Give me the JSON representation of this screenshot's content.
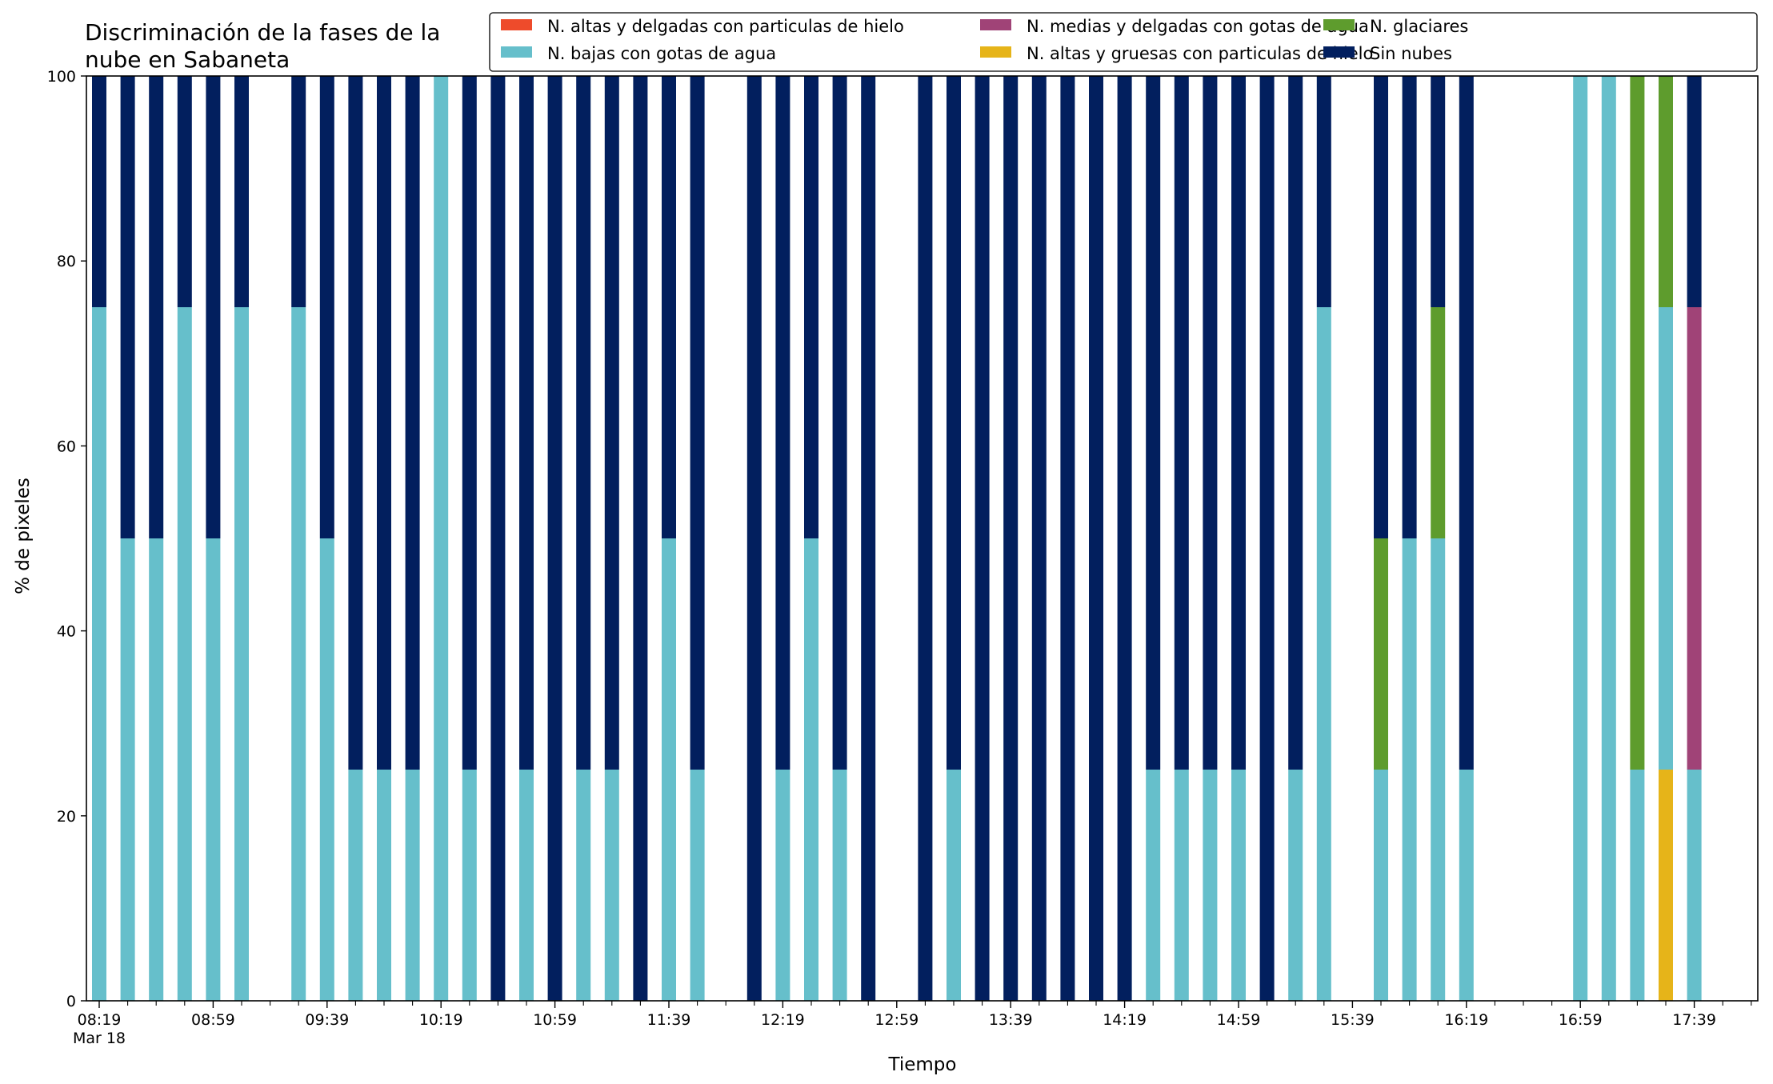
{
  "chart_data": {
    "type": "bar",
    "stacked": true,
    "title": "Discriminación de la fases de la nube en Sabaneta",
    "title_lines": [
      "Discriminación de la fases de la",
      "nube en Sabaneta"
    ],
    "xlabel": "Tiempo",
    "ylabel": "% de pixeles",
    "ylim": [
      0,
      100
    ],
    "yticks": [
      0,
      20,
      40,
      60,
      80,
      100
    ],
    "grid": false,
    "legend_position": "top-right",
    "x_start": "08:19",
    "x_step_minutes": 10,
    "num_slots": 59,
    "x_tick_labels": [
      {
        "slot": 0,
        "label": "08:19",
        "sublabel": "Mar 18"
      },
      {
        "slot": 4,
        "label": "08:59"
      },
      {
        "slot": 8,
        "label": "09:39"
      },
      {
        "slot": 12,
        "label": "10:19"
      },
      {
        "slot": 16,
        "label": "10:59"
      },
      {
        "slot": 20,
        "label": "11:39"
      },
      {
        "slot": 24,
        "label": "12:19"
      },
      {
        "slot": 28,
        "label": "12:59"
      },
      {
        "slot": 32,
        "label": "13:39"
      },
      {
        "slot": 36,
        "label": "14:19"
      },
      {
        "slot": 40,
        "label": "14:59"
      },
      {
        "slot": 44,
        "label": "15:39"
      },
      {
        "slot": 48,
        "label": "16:19"
      },
      {
        "slot": 52,
        "label": "16:59"
      },
      {
        "slot": 56,
        "label": "17:39"
      }
    ],
    "series": [
      {
        "key": "n_altas_delgadas",
        "name": "N. altas y delgadas con particulas de hielo",
        "color": "#ee4b2b"
      },
      {
        "key": "n_altas_gruesas",
        "name": "N. altas y gruesas con particulas de hielo",
        "color": "#e6b419"
      },
      {
        "key": "n_bajas",
        "name": "N. bajas con gotas de agua",
        "color": "#66bfcb"
      },
      {
        "key": "n_glaciares",
        "name": "N. glaciares",
        "color": "#5e9c2d"
      },
      {
        "key": "n_medias",
        "name": "N. medias y delgadas con gotas de agua",
        "color": "#a04377"
      },
      {
        "key": "sin_nubes",
        "name": "Sin nubes",
        "color": "#021f5e"
      }
    ],
    "legend_order": [
      "n_altas_delgadas",
      "n_bajas",
      "n_medias",
      "n_altas_gruesas",
      "n_glaciares",
      "sin_nubes"
    ],
    "bars": [
      {
        "slot": 0,
        "n_bajas": 75,
        "sin_nubes": 25
      },
      {
        "slot": 1,
        "n_bajas": 50,
        "sin_nubes": 50
      },
      {
        "slot": 2,
        "n_bajas": 50,
        "sin_nubes": 50
      },
      {
        "slot": 3,
        "n_bajas": 75,
        "sin_nubes": 25
      },
      {
        "slot": 4,
        "n_bajas": 50,
        "sin_nubes": 50
      },
      {
        "slot": 5,
        "n_bajas": 75,
        "sin_nubes": 25
      },
      {
        "slot": 7,
        "n_bajas": 75,
        "sin_nubes": 25
      },
      {
        "slot": 8,
        "n_bajas": 50,
        "sin_nubes": 50
      },
      {
        "slot": 9,
        "n_bajas": 25,
        "sin_nubes": 75
      },
      {
        "slot": 10,
        "n_bajas": 25,
        "sin_nubes": 75
      },
      {
        "slot": 11,
        "n_bajas": 25,
        "sin_nubes": 75
      },
      {
        "slot": 12,
        "n_bajas": 100
      },
      {
        "slot": 13,
        "n_bajas": 25,
        "sin_nubes": 75
      },
      {
        "slot": 14,
        "sin_nubes": 100
      },
      {
        "slot": 15,
        "n_bajas": 25,
        "sin_nubes": 75
      },
      {
        "slot": 16,
        "sin_nubes": 100
      },
      {
        "slot": 17,
        "n_bajas": 25,
        "sin_nubes": 75
      },
      {
        "slot": 18,
        "n_bajas": 25,
        "sin_nubes": 75
      },
      {
        "slot": 19,
        "sin_nubes": 100
      },
      {
        "slot": 20,
        "n_bajas": 50,
        "sin_nubes": 50
      },
      {
        "slot": 21,
        "n_bajas": 25,
        "sin_nubes": 75
      },
      {
        "slot": 23,
        "sin_nubes": 100
      },
      {
        "slot": 24,
        "n_bajas": 25,
        "sin_nubes": 75
      },
      {
        "slot": 25,
        "n_bajas": 50,
        "sin_nubes": 50
      },
      {
        "slot": 26,
        "n_bajas": 25,
        "sin_nubes": 75
      },
      {
        "slot": 27,
        "sin_nubes": 100
      },
      {
        "slot": 29,
        "sin_nubes": 100
      },
      {
        "slot": 30,
        "n_bajas": 25,
        "sin_nubes": 75
      },
      {
        "slot": 31,
        "sin_nubes": 100
      },
      {
        "slot": 32,
        "sin_nubes": 100
      },
      {
        "slot": 33,
        "sin_nubes": 100
      },
      {
        "slot": 34,
        "sin_nubes": 100
      },
      {
        "slot": 35,
        "sin_nubes": 100
      },
      {
        "slot": 36,
        "sin_nubes": 100
      },
      {
        "slot": 37,
        "n_bajas": 25,
        "sin_nubes": 75
      },
      {
        "slot": 38,
        "n_bajas": 25,
        "sin_nubes": 75
      },
      {
        "slot": 39,
        "n_bajas": 25,
        "sin_nubes": 75
      },
      {
        "slot": 40,
        "n_bajas": 25,
        "sin_nubes": 75
      },
      {
        "slot": 41,
        "sin_nubes": 100
      },
      {
        "slot": 42,
        "n_bajas": 25,
        "sin_nubes": 75
      },
      {
        "slot": 43,
        "n_bajas": 75,
        "sin_nubes": 25
      },
      {
        "slot": 45,
        "n_bajas": 25,
        "n_glaciares": 25,
        "sin_nubes": 50
      },
      {
        "slot": 46,
        "n_bajas": 50,
        "sin_nubes": 50
      },
      {
        "slot": 47,
        "n_bajas": 50,
        "n_glaciares": 25,
        "sin_nubes": 25
      },
      {
        "slot": 48,
        "n_bajas": 25,
        "sin_nubes": 75
      },
      {
        "slot": 52,
        "n_bajas": 100
      },
      {
        "slot": 53,
        "n_bajas": 100
      },
      {
        "slot": 54,
        "n_bajas": 25,
        "n_glaciares": 75
      },
      {
        "slot": 55,
        "n_altas_gruesas": 25,
        "n_bajas": 50,
        "n_glaciares": 25
      },
      {
        "slot": 56,
        "n_bajas": 25,
        "n_medias": 50,
        "sin_nubes": 25
      }
    ]
  }
}
